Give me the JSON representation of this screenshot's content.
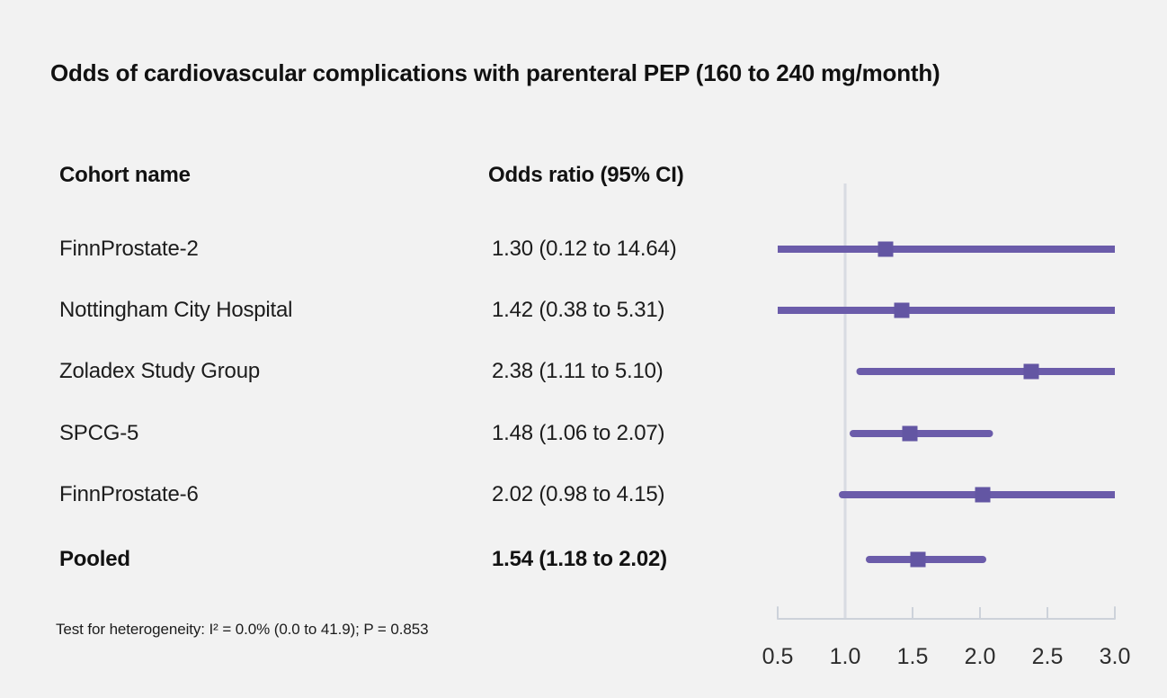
{
  "title": "Odds of cardiovascular complications with parenteral PEP (160 to 240 mg/month)",
  "table": {
    "col1_header": "Cohort name",
    "col2_header": "Odds ratio (95% CI)",
    "rows": [
      {
        "name": "FinnProstate-2",
        "or_text": "1.30 (0.12 to 14.64)",
        "bold": false
      },
      {
        "name": "Nottingham City Hospital",
        "or_text": "1.42 (0.38 to 5.31)",
        "bold": false
      },
      {
        "name": "Zoladex Study Group",
        "or_text": "2.38 (1.11 to 5.10)",
        "bold": false
      },
      {
        "name": "SPCG-5",
        "or_text": "1.48 (1.06 to 2.07)",
        "bold": false
      },
      {
        "name": "FinnProstate-6",
        "or_text": "2.02 (0.98 to 4.15)",
        "bold": false
      },
      {
        "name": "Pooled",
        "or_text": "1.54 (1.18 to 2.02)",
        "bold": true
      }
    ]
  },
  "footnote": "Test for heterogeneity: I² = 0.0% (0.0 to 41.9); P = 0.853",
  "chart_data": {
    "type": "forest",
    "title": "Odds of cardiovascular complications with parenteral PEP (160 to 240 mg/month)",
    "x_ticks": [
      0.5,
      1.0,
      1.5,
      2.0,
      2.5,
      3.0
    ],
    "xlim": [
      0.5,
      3.0
    ],
    "reference_line": 1.0,
    "series": [
      {
        "label": "FinnProstate-2",
        "or": 1.3,
        "ci_low": 0.12,
        "ci_high": 14.64,
        "pooled": false
      },
      {
        "label": "Nottingham City Hospital",
        "or": 1.42,
        "ci_low": 0.38,
        "ci_high": 5.31,
        "pooled": false
      },
      {
        "label": "Zoladex Study Group",
        "or": 2.38,
        "ci_low": 1.11,
        "ci_high": 5.1,
        "pooled": false
      },
      {
        "label": "SPCG-5",
        "or": 1.48,
        "ci_low": 1.06,
        "ci_high": 2.07,
        "pooled": false
      },
      {
        "label": "FinnProstate-6",
        "or": 2.02,
        "ci_low": 0.98,
        "ci_high": 4.15,
        "pooled": false
      },
      {
        "label": "Pooled",
        "or": 1.54,
        "ci_low": 1.18,
        "ci_high": 2.02,
        "pooled": true
      }
    ],
    "colors": {
      "ci_line": "#6b5caa",
      "marker": "#6356a3",
      "axis": "#cdd2da",
      "reference_line": "#d8dbe2",
      "tick_label": "#2d2d2d",
      "background": "#f2f2f2"
    }
  }
}
